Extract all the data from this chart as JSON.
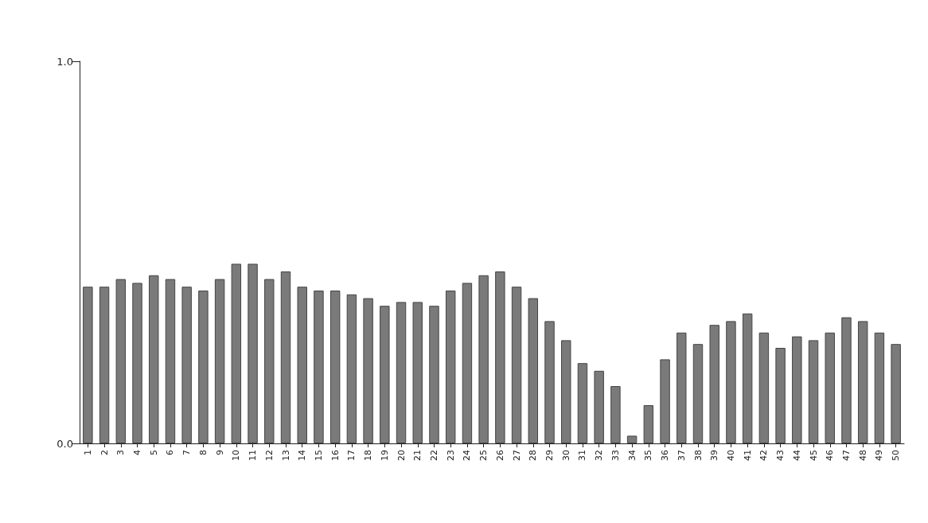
{
  "chart_data": {
    "type": "bar",
    "categories": [
      "1",
      "2",
      "3",
      "4",
      "5",
      "6",
      "7",
      "8",
      "9",
      "10",
      "11",
      "12",
      "13",
      "14",
      "15",
      "16",
      "17",
      "18",
      "19",
      "20",
      "21",
      "22",
      "23",
      "24",
      "25",
      "26",
      "27",
      "28",
      "29",
      "30",
      "31",
      "32",
      "33",
      "34",
      "35",
      "36",
      "37",
      "38",
      "39",
      "40",
      "41",
      "42",
      "43",
      "44",
      "45",
      "46",
      "47",
      "48",
      "49",
      "50"
    ],
    "values": [
      0.41,
      0.41,
      0.43,
      0.42,
      0.44,
      0.43,
      0.41,
      0.4,
      0.43,
      0.47,
      0.47,
      0.43,
      0.45,
      0.41,
      0.4,
      0.4,
      0.39,
      0.38,
      0.36,
      0.37,
      0.37,
      0.36,
      0.4,
      0.42,
      0.44,
      0.45,
      0.41,
      0.38,
      0.32,
      0.27,
      0.21,
      0.19,
      0.15,
      0.02,
      0.1,
      0.22,
      0.29,
      0.26,
      0.31,
      0.32,
      0.34,
      0.29,
      0.25,
      0.28,
      0.27,
      0.29,
      0.33,
      0.32,
      0.29,
      0.26
    ],
    "color": "#7a7a7a",
    "ylim": [
      0,
      1
    ],
    "yticks": [
      {
        "value": 0,
        "label": "0.0"
      },
      {
        "value": 1,
        "label": "1.0"
      }
    ],
    "grid": false
  }
}
